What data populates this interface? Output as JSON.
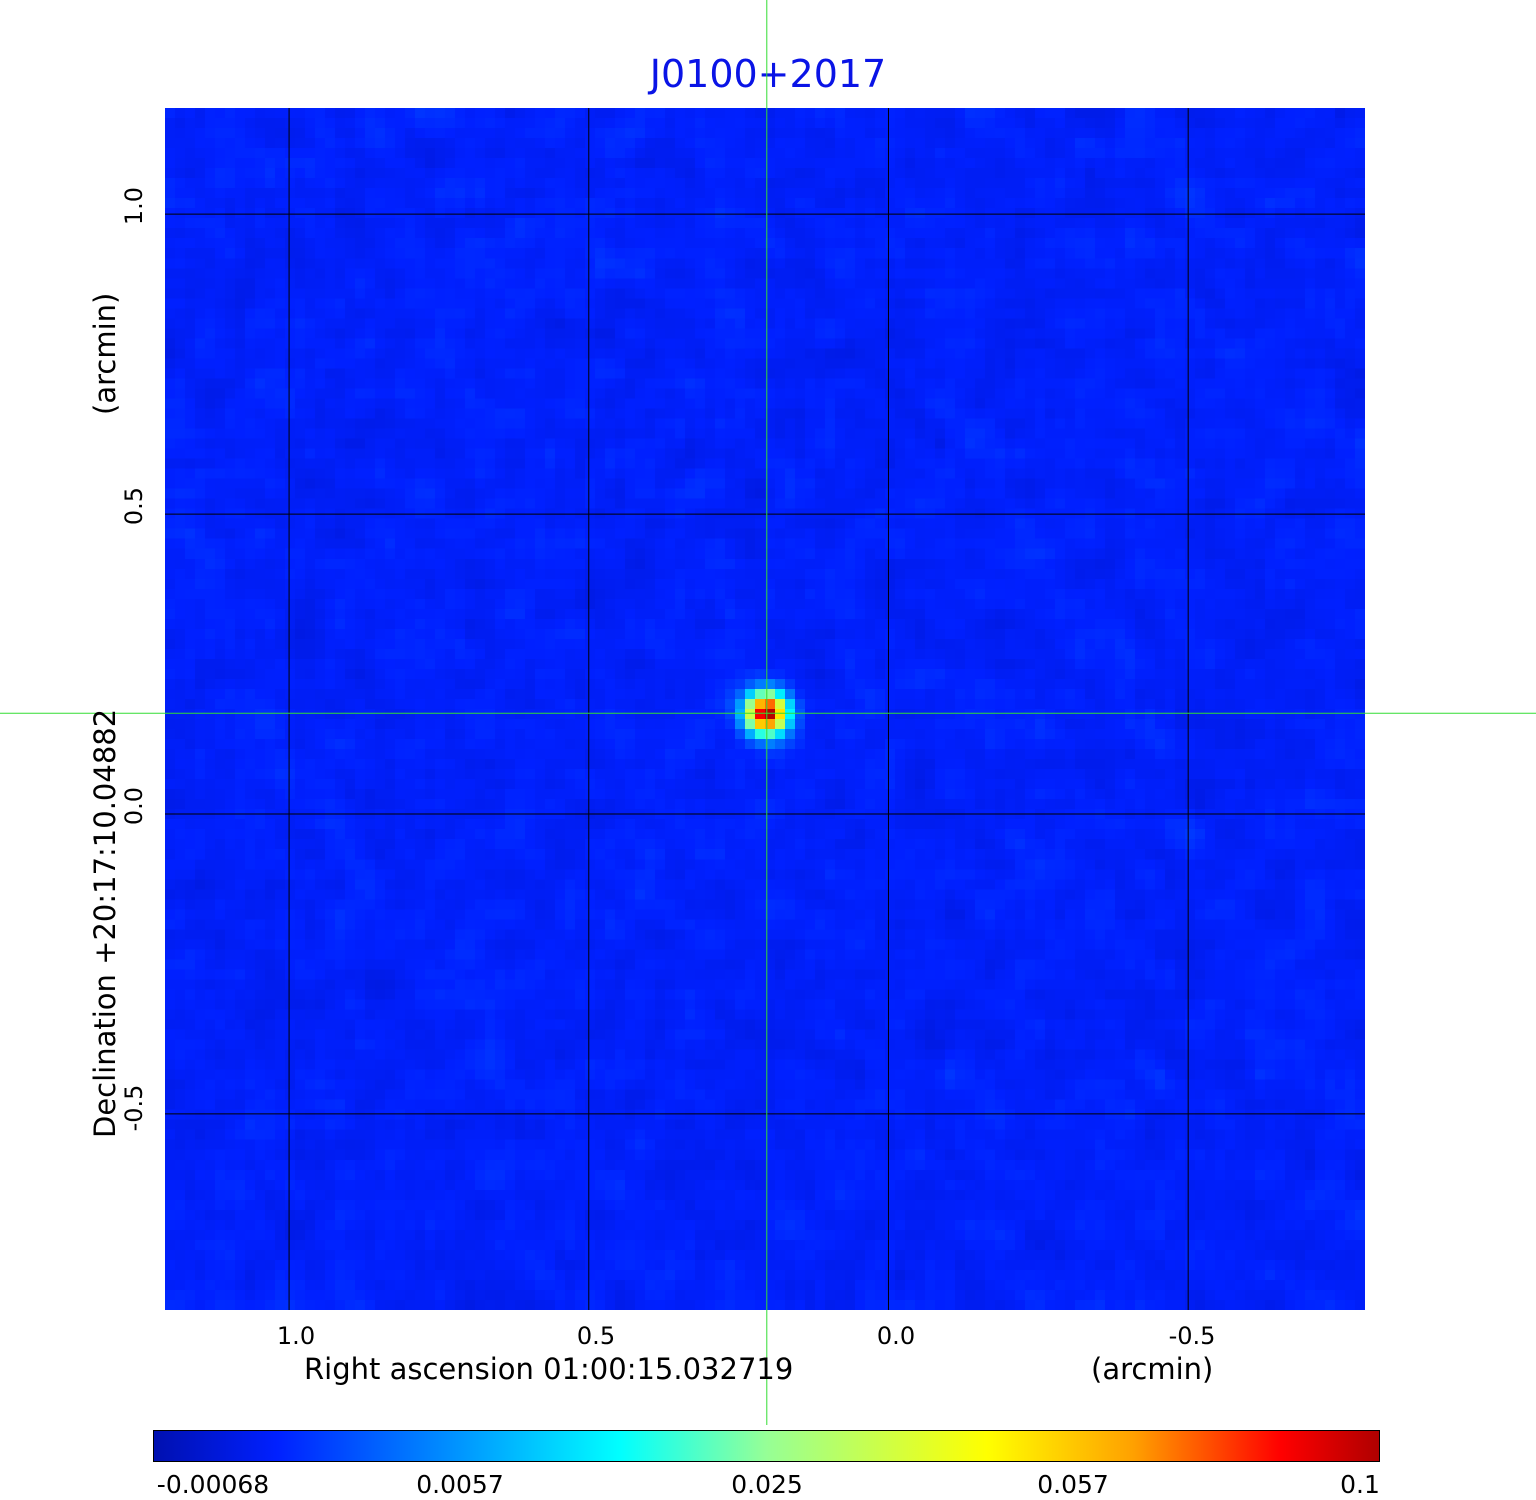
{
  "chart_data": {
    "type": "heatmap",
    "title": "J0100+2017",
    "xlabel": "Right ascension  01:00:15.032719",
    "xunit": "(arcmin)",
    "ylabel": "Declination  +20:17:10.04882",
    "yunit": "(arcmin)",
    "xlim": [
      1.207,
      -0.795
    ],
    "ylim": [
      -0.827,
      1.177
    ],
    "xticks": [
      {
        "value": 1.0,
        "label": "1.0"
      },
      {
        "value": 0.5,
        "label": "0.5"
      },
      {
        "value": 0.0,
        "label": "0.0"
      },
      {
        "value": -0.5,
        "label": "-0.5"
      }
    ],
    "yticks": [
      {
        "value": 1.0,
        "label": "1.0"
      },
      {
        "value": 0.5,
        "label": "0.5"
      },
      {
        "value": 0.0,
        "label": "0.0"
      },
      {
        "value": -0.5,
        "label": "-0.5"
      }
    ],
    "grid": true,
    "grid_color": "#000000",
    "colormap": "jet",
    "colorbar": {
      "placement": "bottom",
      "ticks": [
        "-0.00068",
        "0.0057",
        "0.025",
        "0.057",
        "0.1"
      ],
      "range": [
        -0.00068,
        0.1
      ]
    },
    "source": {
      "x": 0.203,
      "y": 0.168,
      "peak": 0.1
    },
    "crosshair": {
      "x": 0.203,
      "y": 0.168,
      "color": "#33dd33"
    },
    "title_color": "#0a14e6"
  }
}
